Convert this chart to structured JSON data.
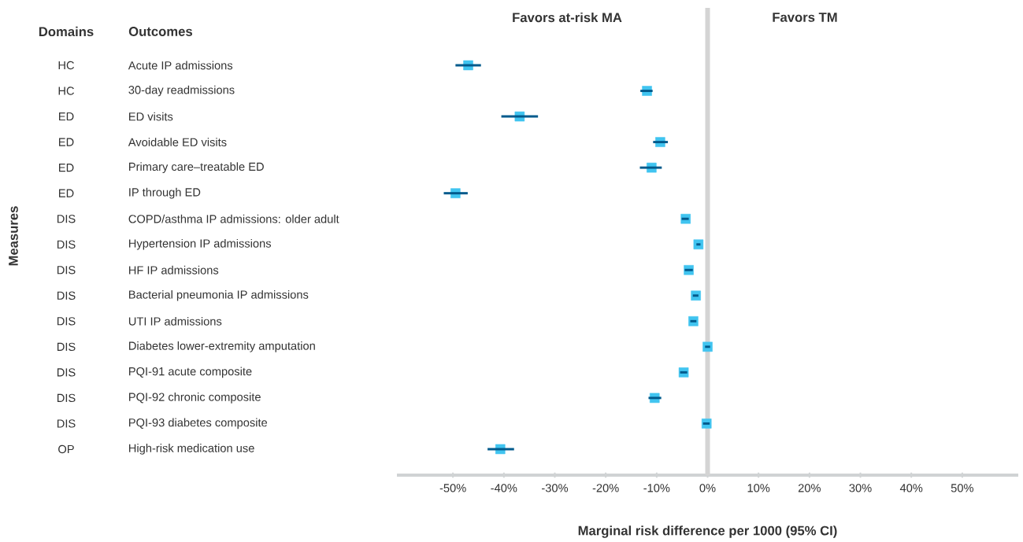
{
  "chart_data": {
    "type": "scatter",
    "orientation": "horizontal",
    "xlabel": "Marginal risk difference per 1000 (95% CI)",
    "categories": [
      "Acute IP admissions",
      "30-day readmissions",
      "ED visits",
      "Avoidable ED visits",
      "Primary care–treatable ED",
      "IP through ED",
      "COPD/asthma IP admissions: older adult",
      "Hypertension IP admissions",
      "HF IP admissions",
      "Bacterial pneumonia IP admissions",
      "UTI IP admissions",
      "Diabetes lower-extremity amputation",
      "PQI-91 acute composite",
      "PQI-92 chronic composite",
      "PQI-93 diabetes composite",
      "High-risk medication use"
    ],
    "values": [
      -47.0,
      -11.9,
      -36.9,
      -9.3,
      -11.0,
      -49.5,
      -4.3,
      -1.8,
      -3.7,
      -2.3,
      -2.8,
      0.0,
      -4.7,
      -10.4,
      -0.2,
      -40.7
    ],
    "errors": [
      [
        -49.5,
        -44.5
      ],
      [
        -13.2,
        -10.8
      ],
      [
        -40.5,
        -33.3
      ],
      [
        -10.7,
        -7.8
      ],
      [
        -13.3,
        -9.0
      ],
      [
        -51.8,
        -47.1
      ],
      [
        -5.1,
        -3.7
      ],
      [
        -2.2,
        -1.4
      ],
      [
        -4.5,
        -2.9
      ],
      [
        -2.9,
        -1.8
      ],
      [
        -3.4,
        -2.2
      ],
      [
        -0.5,
        0.5
      ],
      [
        -5.4,
        -4.0
      ],
      [
        -11.6,
        -9.1
      ],
      [
        -0.9,
        0.4
      ],
      [
        -43.2,
        -38.0
      ]
    ],
    "color": "#40c4f0",
    "marker": "square",
    "xlim": [
      -61,
      61
    ],
    "xticks": [
      {
        "value": -50,
        "label": "-50%"
      },
      {
        "value": -40,
        "label": "-40%"
      },
      {
        "value": -30,
        "label": "-30%"
      },
      {
        "value": -20,
        "label": "-20%"
      },
      {
        "value": -10,
        "label": "-10%"
      },
      {
        "value": 0,
        "label": "0%"
      },
      {
        "value": 10,
        "label": "10%"
      },
      {
        "value": 20,
        "label": "20%"
      },
      {
        "value": 30,
        "label": "30%"
      },
      {
        "value": 40,
        "label": "40%"
      },
      {
        "value": 50,
        "label": "50%"
      }
    ],
    "ref_lines": [
      {
        "axis": "x",
        "value": 0,
        "color": "#d4d4d4"
      }
    ],
    "annotations": [
      "Domains",
      "Outcomes",
      "Favors at-risk MA",
      "Favors TM",
      "Measures",
      "HC",
      "HC",
      "ED",
      "ED",
      "ED",
      "ED",
      "DIS",
      "DIS",
      "DIS",
      "DIS",
      "DIS",
      "DIS",
      "DIS",
      "DIS",
      "DIS",
      "OP"
    ]
  }
}
